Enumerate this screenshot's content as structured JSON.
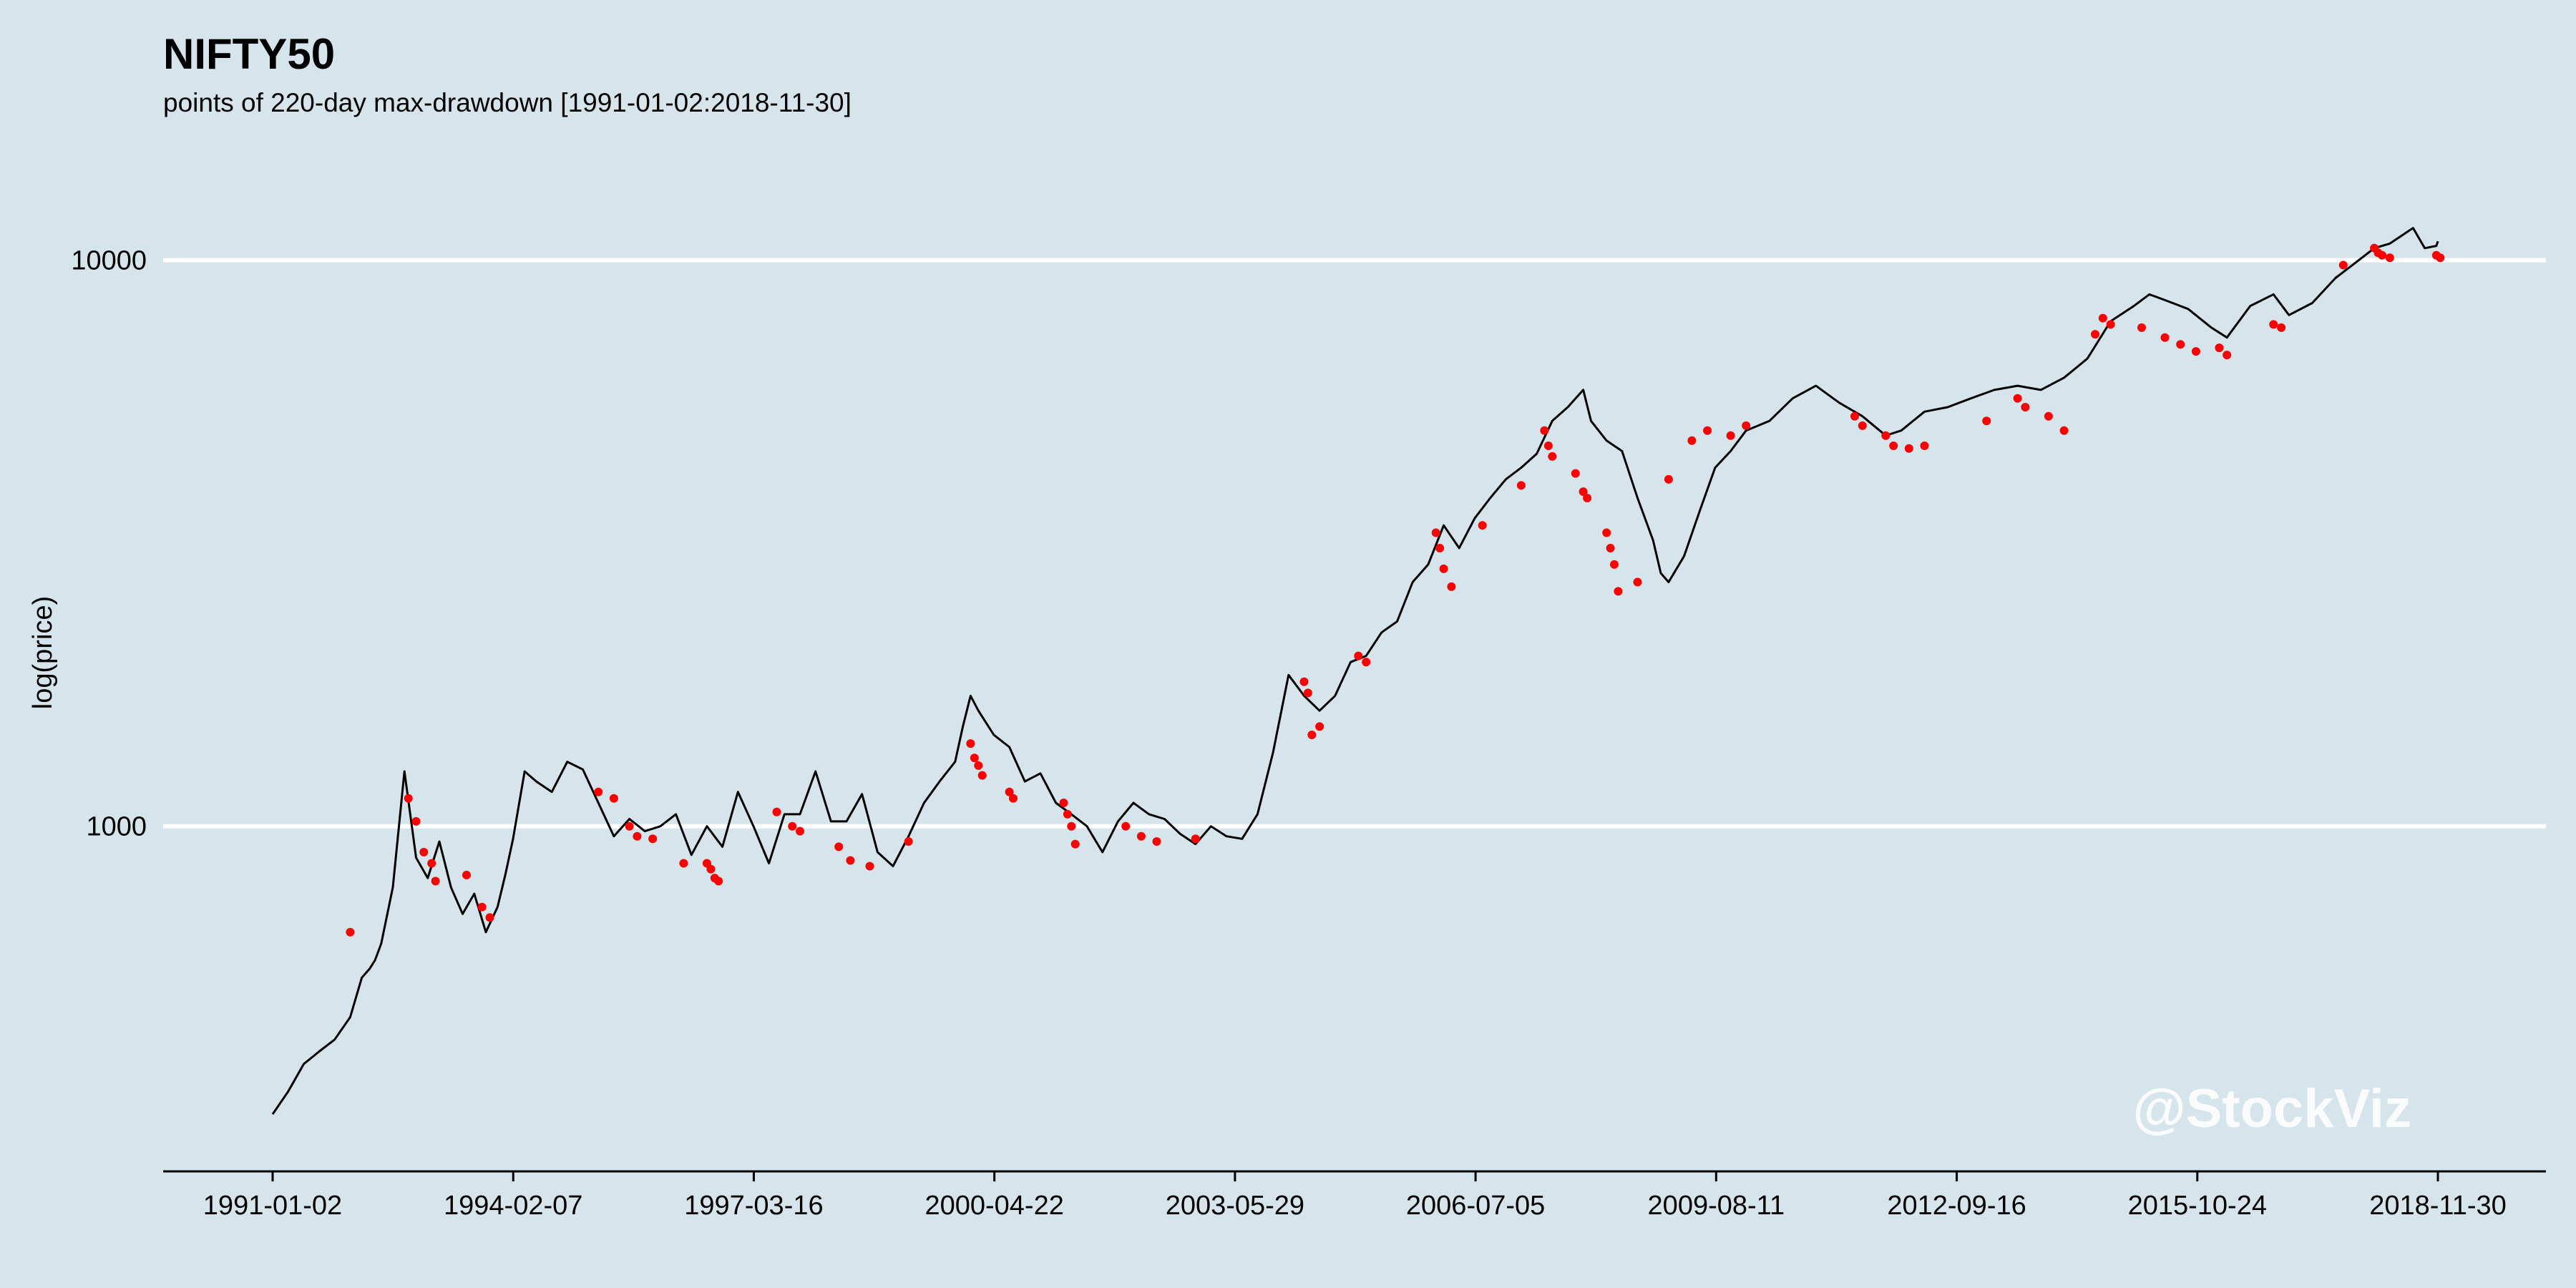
{
  "chart_data": {
    "type": "line",
    "title": "NIFTY50",
    "subtitle": "points of 220-day max-drawdown [1991-01-02:2018-11-30]",
    "xlabel": "",
    "ylabel": "log(price)",
    "y_scale": "log",
    "ylim": [
      290,
      14000
    ],
    "y_ticks": [
      1000,
      10000
    ],
    "y_tick_labels": [
      "1000",
      "10000"
    ],
    "grid": "horizontal major lines (white)",
    "x_tick_labels": [
      "1991-01-02",
      "1994-02-07",
      "1997-03-16",
      "2000-04-22",
      "2003-05-29",
      "2006-07-05",
      "2009-08-11",
      "2012-09-16",
      "2015-10-24",
      "2018-11-30"
    ],
    "series": [
      {
        "color": "#000000",
        "kind": "line",
        "x": [
          1991.0,
          1991.2,
          1991.4,
          1991.6,
          1991.8,
          1992.0,
          1992.15,
          1992.25,
          1992.32,
          1992.4,
          1992.55,
          1992.7,
          1992.85,
          1993.0,
          1993.15,
          1993.3,
          1993.45,
          1993.6,
          1993.75,
          1993.9,
          1994.0,
          1994.1,
          1994.25,
          1994.4,
          1994.6,
          1994.8,
          1995.0,
          1995.2,
          1995.4,
          1995.6,
          1995.8,
          1996.0,
          1996.2,
          1996.4,
          1996.6,
          1996.8,
          1997.0,
          1997.2,
          1997.4,
          1997.6,
          1997.8,
          1998.0,
          1998.2,
          1998.4,
          1998.6,
          1998.8,
          1999.0,
          1999.2,
          1999.4,
          1999.6,
          1999.8,
          1999.9,
          2000.0,
          2000.1,
          2000.3,
          2000.5,
          2000.7,
          2000.9,
          2001.1,
          2001.3,
          2001.5,
          2001.7,
          2001.9,
          2002.1,
          2002.3,
          2002.5,
          2002.7,
          2002.9,
          2003.1,
          2003.3,
          2003.5,
          2003.7,
          2003.9,
          2004.1,
          2004.3,
          2004.5,
          2004.7,
          2004.9,
          2005.1,
          2005.3,
          2005.5,
          2005.7,
          2005.9,
          2006.1,
          2006.3,
          2006.5,
          2006.7,
          2006.9,
          2007.1,
          2007.3,
          2007.5,
          2007.7,
          2007.9,
          2008.0,
          2008.2,
          2008.4,
          2008.6,
          2008.8,
          2008.9,
          2009.0,
          2009.2,
          2009.4,
          2009.6,
          2009.8,
          2010.0,
          2010.3,
          2010.6,
          2010.9,
          2011.2,
          2011.5,
          2011.8,
          2012.0,
          2012.3,
          2012.6,
          2012.9,
          2013.2,
          2013.5,
          2013.8,
          2014.1,
          2014.4,
          2014.7,
          2015.0,
          2015.2,
          2015.4,
          2015.7,
          2016.0,
          2016.2,
          2016.5,
          2016.8,
          2017.0,
          2017.3,
          2017.6,
          2017.9,
          2018.1,
          2018.3,
          2018.6,
          2018.75,
          2018.9,
          2018.92
        ],
        "y": [
          310,
          340,
          380,
          400,
          420,
          460,
          540,
          560,
          580,
          620,
          780,
          1250,
          880,
          810,
          940,
          780,
          700,
          760,
          650,
          720,
          820,
          950,
          1250,
          1200,
          1150,
          1300,
          1260,
          1100,
          960,
          1030,
          980,
          1000,
          1050,
          890,
          1000,
          920,
          1150,
          1000,
          860,
          1050,
          1050,
          1250,
          1020,
          1020,
          1140,
          900,
          850,
          960,
          1100,
          1200,
          1300,
          1500,
          1700,
          1600,
          1450,
          1380,
          1200,
          1240,
          1100,
          1050,
          1000,
          900,
          1020,
          1100,
          1050,
          1030,
          970,
          930,
          1000,
          960,
          950,
          1050,
          1350,
          1850,
          1700,
          1600,
          1700,
          1950,
          2000,
          2200,
          2300,
          2700,
          2900,
          3400,
          3100,
          3500,
          3800,
          4100,
          4300,
          4550,
          5200,
          5500,
          5900,
          5200,
          4800,
          4600,
          3800,
          3200,
          2800,
          2700,
          3000,
          3600,
          4300,
          4600,
          5000,
          5200,
          5700,
          6000,
          5600,
          5300,
          4900,
          5000,
          5400,
          5500,
          5700,
          5900,
          6000,
          5900,
          6200,
          6700,
          7800,
          8300,
          8700,
          8500,
          8200,
          7600,
          7300,
          8300,
          8700,
          8000,
          8400,
          9300,
          10000,
          10500,
          10700,
          11400,
          10500,
          10600,
          10800
        ]
      },
      {
        "color": "#ff0000",
        "kind": "points",
        "x": [
          1992.75,
          1992.85,
          1992.95,
          1993.05,
          1993.1,
          1993.5,
          1993.7,
          1993.8,
          1992.0,
          1995.2,
          1995.4,
          1995.6,
          1995.7,
          1995.9,
          1996.3,
          1996.6,
          1996.65,
          1996.7,
          1996.75,
          1997.5,
          1997.7,
          1997.8,
          1998.3,
          1998.45,
          1998.7,
          1999.2,
          2000.0,
          2000.05,
          2000.1,
          2000.15,
          2000.5,
          2000.55,
          2001.2,
          2001.25,
          2001.3,
          2001.35,
          2002.0,
          2002.2,
          2002.4,
          2002.9,
          2004.3,
          2004.35,
          2004.4,
          2004.5,
          2005.0,
          2005.1,
          2006.0,
          2006.05,
          2006.1,
          2006.2,
          2006.6,
          2007.1,
          2007.4,
          2007.45,
          2007.5,
          2007.8,
          2007.9,
          2007.95,
          2008.2,
          2008.25,
          2008.3,
          2008.35,
          2008.6,
          2009.0,
          2009.3,
          2009.5,
          2009.8,
          2010.0,
          2011.4,
          2011.5,
          2011.8,
          2011.9,
          2012.1,
          2012.3,
          2013.1,
          2013.5,
          2013.6,
          2013.9,
          2014.1,
          2014.5,
          2014.6,
          2014.7,
          2015.1,
          2015.4,
          2015.6,
          2015.8,
          2016.1,
          2016.2,
          2016.8,
          2016.9,
          2017.7,
          2018.1,
          2018.15,
          2018.2,
          2018.3,
          2018.9,
          2018.95
        ],
        "y": [
          1120,
          1020,
          900,
          860,
          800,
          820,
          720,
          690,
          650,
          1150,
          1120,
          1000,
          960,
          950,
          860,
          860,
          840,
          810,
          800,
          1060,
          1000,
          980,
          920,
          870,
          850,
          940,
          1400,
          1320,
          1280,
          1230,
          1150,
          1120,
          1100,
          1050,
          1000,
          930,
          1000,
          960,
          940,
          950,
          1800,
          1720,
          1450,
          1500,
          2000,
          1950,
          3300,
          3100,
          2850,
          2650,
          3400,
          4000,
          5000,
          4700,
          4500,
          4200,
          3900,
          3800,
          3300,
          3100,
          2900,
          2600,
          2700,
          4100,
          4800,
          5000,
          4900,
          5100,
          5300,
          5100,
          4900,
          4700,
          4650,
          4700,
          5200,
          5700,
          5500,
          5300,
          5000,
          7400,
          7900,
          7700,
          7600,
          7300,
          7100,
          6900,
          7000,
          6800,
          7700,
          7600,
          9800,
          10500,
          10300,
          10200,
          10100,
          10200,
          10100
        ]
      }
    ]
  },
  "watermark": "@StockViz"
}
